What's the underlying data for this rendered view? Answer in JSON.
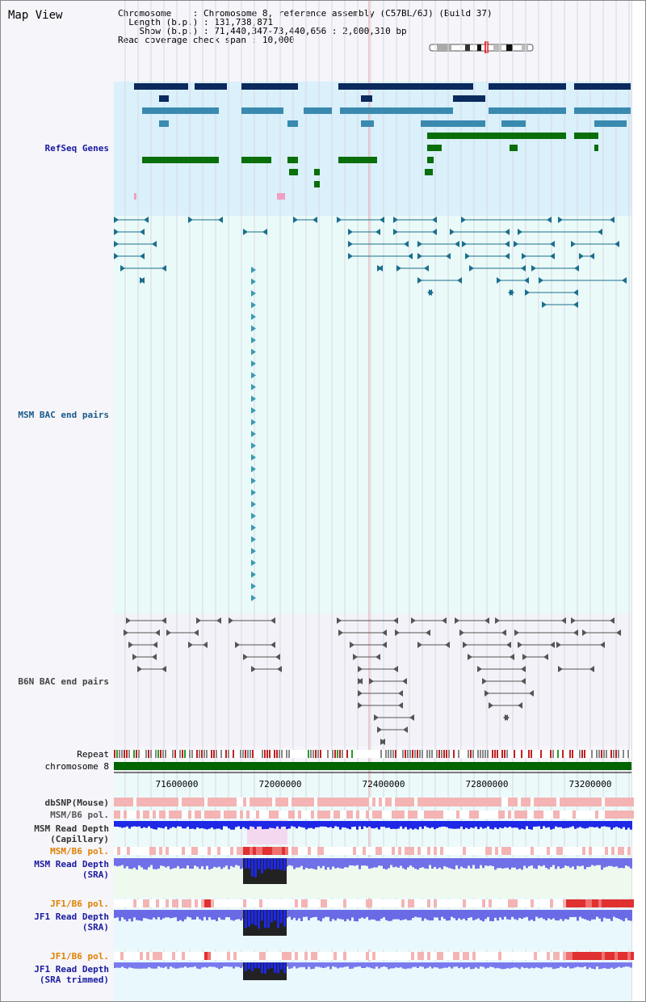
{
  "header": {
    "title": "Map View",
    "chromosome_label": "Chromosome",
    "chromosome_value": "Chromosome 8, reference assembly (C57BL/6J) (Build 37)",
    "length_label": "Length (b.p.)",
    "length_value": "131,738,871",
    "show_label": "Show (b.p.)",
    "show_value": "71,440,347-73,440,656 : 2,000,310 bp",
    "coverage_label": "Read coverage check span",
    "coverage_value": "10,000"
  },
  "tracks": {
    "refseq": {
      "label": "RefSeq Genes",
      "color": "#1a1aa0"
    },
    "msm_bac": {
      "label": "MSM BAC end pairs",
      "color": "#1a5a8a"
    },
    "b6n_bac": {
      "label": "B6N BAC end pairs",
      "color": "#444444"
    },
    "repeat": {
      "label": "Repeat"
    },
    "chromosome": {
      "label": "chromosome 8"
    },
    "dbsnp": {
      "label": "dbSNP(Mouse)"
    },
    "msm_pol_cap": {
      "label": "MSM/B6 pol."
    },
    "msm_depth_cap": {
      "label1": "MSM Read Depth",
      "label2": "(Capillary)"
    },
    "msm_pol_sra": {
      "label": "MSM/B6 pol.",
      "color": "#e08000"
    },
    "msm_depth_sra": {
      "label1": "MSM Read Depth",
      "label2": "(SRA)"
    },
    "jf1_pol_1": {
      "label": "JF1/B6 pol.",
      "color": "#e08000"
    },
    "jf1_depth_sra": {
      "label1": "JF1 Read Depth",
      "label2": "(SRA)"
    },
    "jf1_pol_2": {
      "label": "JF1/B6 pol.",
      "color": "#e08000"
    },
    "jf1_depth_trim": {
      "label1": "JF1 Read Depth",
      "label2": "(SRA trimmed)"
    }
  },
  "axis": {
    "ticks": [
      "71600000",
      "72000000",
      "72400000",
      "72800000",
      "73200000"
    ]
  },
  "colors": {
    "gene_dark": "#0a2a5e",
    "gene_mid": "#3a8ab0",
    "gene_green": "#0a6e0a",
    "refseq_bg": "#daf0fa",
    "msm_bg": "#eafaf8",
    "depth_blue": "#1e28e6",
    "chromosome_green": "#006400"
  }
}
